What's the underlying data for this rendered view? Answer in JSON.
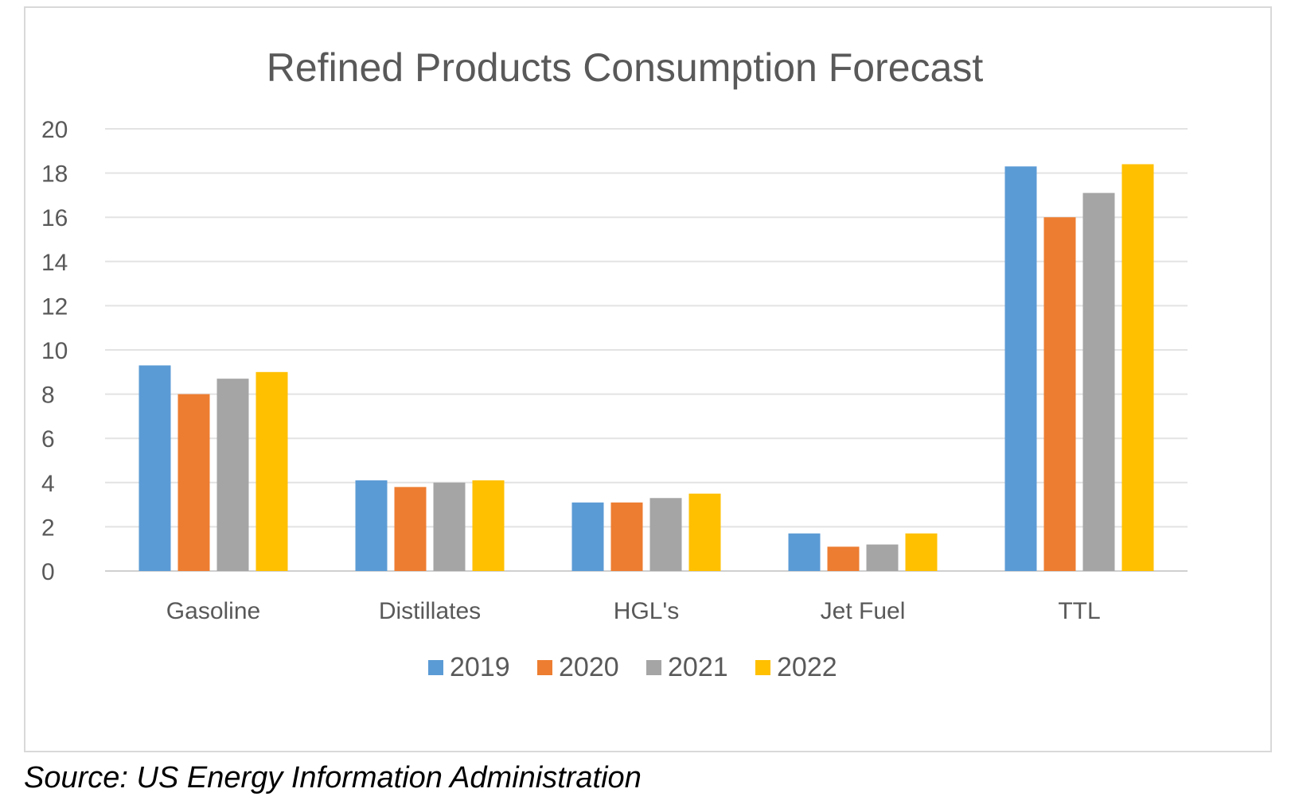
{
  "chart_data": {
    "type": "bar",
    "title": "Refined Products Consumption Forecast",
    "xlabel": "",
    "ylabel": "",
    "ylim": [
      0,
      20
    ],
    "yticks": [
      "0",
      "2",
      "4",
      "6",
      "8",
      "10",
      "12",
      "14",
      "16",
      "18",
      "20"
    ],
    "grid": true,
    "legend_position": "bottom",
    "categories": [
      "Gasoline",
      "Distillates",
      "HGL's",
      "Jet Fuel",
      "TTL"
    ],
    "series": [
      {
        "name": "2019",
        "color": "#5b9bd5",
        "values": [
          9.3,
          4.1,
          3.1,
          1.7,
          18.3
        ]
      },
      {
        "name": "2020",
        "color": "#ed7d31",
        "values": [
          8.0,
          3.8,
          3.1,
          1.1,
          16.0
        ]
      },
      {
        "name": "2021",
        "color": "#a5a5a5",
        "values": [
          8.7,
          4.0,
          3.3,
          1.2,
          17.1
        ]
      },
      {
        "name": "2022",
        "color": "#ffc000",
        "values": [
          9.0,
          4.1,
          3.5,
          1.7,
          18.4
        ]
      }
    ]
  },
  "source": "Source:  US Energy Information Administration"
}
